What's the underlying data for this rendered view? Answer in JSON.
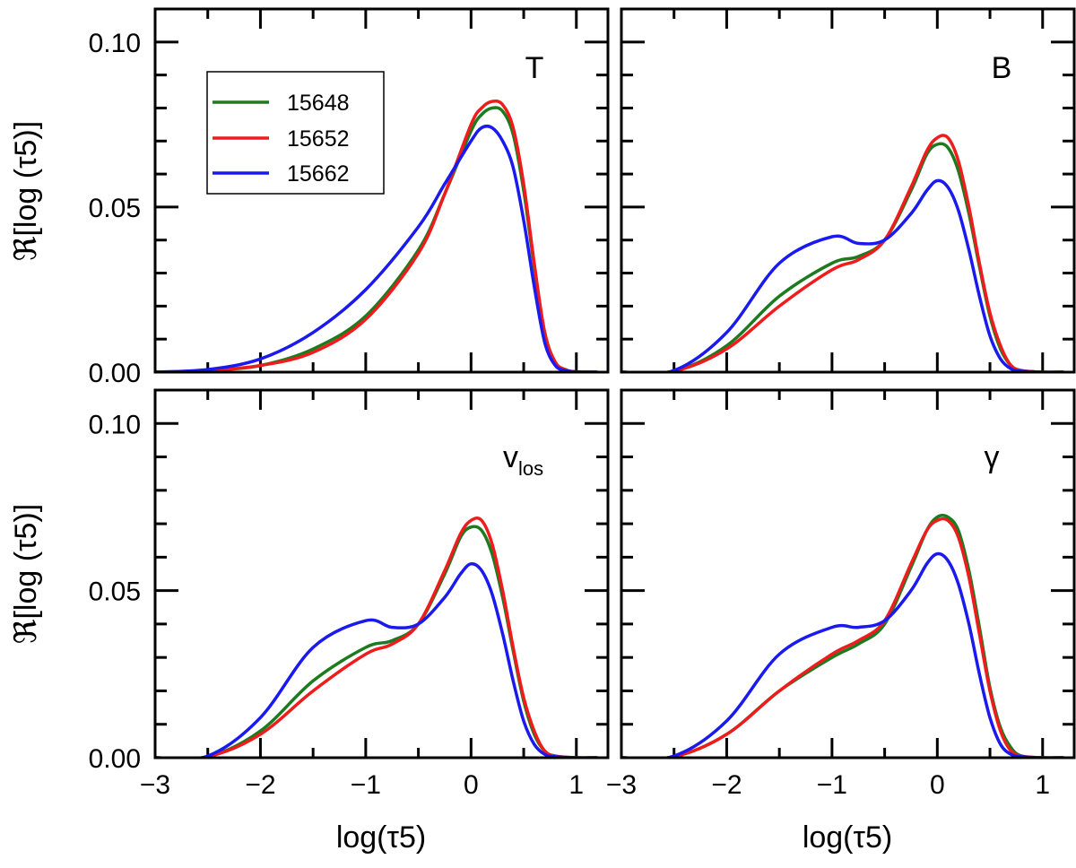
{
  "chart_data": [
    {
      "type": "line",
      "panel_label": "T",
      "xlabel": "log(τ5)",
      "ylabel": "ℜ[log (τ5)]",
      "xlim": [
        -3,
        1.3
      ],
      "ylim": [
        0,
        0.11
      ],
      "x_ticks": [
        "−3",
        "−2",
        "−1",
        "0",
        "1"
      ],
      "y_ticks": [
        "0.00",
        "0.05",
        "0.10"
      ],
      "x": [
        -3.0,
        -2.5,
        -2.0,
        -1.5,
        -1.0,
        -0.5,
        -0.25,
        0.0,
        0.1,
        0.2,
        0.3,
        0.4,
        0.5,
        0.6,
        0.7,
        0.8,
        0.9,
        1.0,
        1.2
      ],
      "series": [
        {
          "name": "15648",
          "color": "#1e7a1e",
          "values": [
            0.0,
            0.0005,
            0.002,
            0.007,
            0.017,
            0.037,
            0.054,
            0.073,
            0.078,
            0.08,
            0.079,
            0.072,
            0.055,
            0.032,
            0.012,
            0.003,
            0.0007,
            0.0001,
            0.0
          ]
        },
        {
          "name": "15652",
          "color": "#ee1c1c",
          "values": [
            0.0,
            0.0005,
            0.002,
            0.006,
            0.016,
            0.036,
            0.054,
            0.075,
            0.08,
            0.082,
            0.081,
            0.074,
            0.057,
            0.033,
            0.012,
            0.003,
            0.0007,
            0.0001,
            0.0
          ]
        },
        {
          "name": "15662",
          "color": "#1a1aee",
          "values": [
            0.0,
            0.0008,
            0.004,
            0.012,
            0.025,
            0.044,
            0.057,
            0.07,
            0.074,
            0.074,
            0.07,
            0.062,
            0.046,
            0.026,
            0.009,
            0.002,
            0.0005,
            0.0001,
            0.0
          ]
        }
      ],
      "legend": {
        "position": "top-left",
        "entries": [
          "15648",
          "15652",
          "15662"
        ]
      }
    },
    {
      "type": "line",
      "panel_label": "B",
      "xlabel": "log(τ5)",
      "ylabel": "",
      "xlim": [
        -3,
        1.3
      ],
      "ylim": [
        0,
        0.11
      ],
      "x_ticks": [
        "−3",
        "−2",
        "−1",
        "0",
        "1"
      ],
      "y_ticks": [],
      "x": [
        -3.0,
        -2.5,
        -2.0,
        -1.5,
        -1.0,
        -0.75,
        -0.5,
        -0.25,
        -0.1,
        0.0,
        0.1,
        0.2,
        0.3,
        0.4,
        0.5,
        0.6,
        0.7,
        0.8,
        1.0,
        1.2
      ],
      "series": [
        {
          "name": "15648",
          "color": "#1e7a1e",
          "values": [
            0.0,
            0.0003,
            0.008,
            0.023,
            0.033,
            0.035,
            0.04,
            0.055,
            0.066,
            0.069,
            0.068,
            0.061,
            0.048,
            0.032,
            0.017,
            0.007,
            0.002,
            0.0005,
            0.0,
            0.0
          ]
        },
        {
          "name": "15652",
          "color": "#ee1c1c",
          "values": [
            0.0,
            0.0003,
            0.007,
            0.02,
            0.031,
            0.034,
            0.04,
            0.056,
            0.067,
            0.071,
            0.071,
            0.064,
            0.05,
            0.033,
            0.018,
            0.008,
            0.002,
            0.0005,
            0.0,
            0.0
          ]
        },
        {
          "name": "15662",
          "color": "#1a1aee",
          "values": [
            0.0,
            0.0005,
            0.012,
            0.033,
            0.041,
            0.039,
            0.04,
            0.048,
            0.055,
            0.058,
            0.056,
            0.049,
            0.037,
            0.023,
            0.011,
            0.004,
            0.001,
            0.0003,
            0.0,
            0.0
          ]
        }
      ]
    },
    {
      "type": "line",
      "panel_label": "vlos",
      "xlabel": "log(τ5)",
      "ylabel": "ℜ[log (τ5)]",
      "xlim": [
        -3,
        1.3
      ],
      "ylim": [
        0,
        0.11
      ],
      "x_ticks": [
        "−3",
        "−2",
        "−1",
        "0",
        "1"
      ],
      "y_ticks": [
        "0.00",
        "0.05",
        "0.10"
      ],
      "x": [
        -3.0,
        -2.5,
        -2.0,
        -1.5,
        -1.0,
        -0.75,
        -0.5,
        -0.25,
        -0.1,
        0.0,
        0.1,
        0.2,
        0.3,
        0.4,
        0.5,
        0.6,
        0.7,
        0.8,
        1.0,
        1.2
      ],
      "series": [
        {
          "name": "15648",
          "color": "#1e7a1e",
          "values": [
            0.0,
            0.0003,
            0.008,
            0.023,
            0.033,
            0.035,
            0.04,
            0.055,
            0.066,
            0.069,
            0.068,
            0.061,
            0.048,
            0.032,
            0.017,
            0.007,
            0.002,
            0.0005,
            0.0,
            0.0
          ]
        },
        {
          "name": "15652",
          "color": "#ee1c1c",
          "values": [
            0.0,
            0.0003,
            0.007,
            0.02,
            0.031,
            0.034,
            0.04,
            0.056,
            0.067,
            0.071,
            0.071,
            0.064,
            0.05,
            0.033,
            0.018,
            0.008,
            0.002,
            0.0005,
            0.0,
            0.0
          ]
        },
        {
          "name": "15662",
          "color": "#1a1aee",
          "values": [
            0.0,
            0.0005,
            0.012,
            0.033,
            0.041,
            0.039,
            0.04,
            0.048,
            0.055,
            0.058,
            0.056,
            0.049,
            0.037,
            0.023,
            0.011,
            0.004,
            0.001,
            0.0003,
            0.0,
            0.0
          ]
        }
      ]
    },
    {
      "type": "line",
      "panel_label": "γ",
      "xlabel": "log(τ5)",
      "ylabel": "",
      "xlim": [
        -3,
        1.3
      ],
      "ylim": [
        0,
        0.11
      ],
      "x_ticks": [
        "−3",
        "−2",
        "−1",
        "0",
        "1"
      ],
      "y_ticks": [],
      "x": [
        -3.0,
        -2.5,
        -2.0,
        -1.5,
        -1.0,
        -0.75,
        -0.5,
        -0.25,
        -0.1,
        0.0,
        0.1,
        0.2,
        0.3,
        0.4,
        0.5,
        0.6,
        0.7,
        0.8,
        1.0,
        1.2
      ],
      "series": [
        {
          "name": "15648",
          "color": "#1e7a1e",
          "values": [
            0.0,
            0.0003,
            0.007,
            0.02,
            0.03,
            0.034,
            0.04,
            0.057,
            0.068,
            0.072,
            0.072,
            0.068,
            0.056,
            0.039,
            0.021,
            0.009,
            0.003,
            0.0005,
            0.0,
            0.0
          ]
        },
        {
          "name": "15652",
          "color": "#ee1c1c",
          "values": [
            0.0,
            0.0003,
            0.007,
            0.02,
            0.031,
            0.035,
            0.041,
            0.058,
            0.068,
            0.071,
            0.071,
            0.066,
            0.054,
            0.037,
            0.02,
            0.008,
            0.002,
            0.0005,
            0.0,
            0.0
          ]
        },
        {
          "name": "15662",
          "color": "#1a1aee",
          "values": [
            0.0,
            0.0005,
            0.011,
            0.031,
            0.039,
            0.039,
            0.041,
            0.05,
            0.058,
            0.061,
            0.059,
            0.052,
            0.04,
            0.025,
            0.012,
            0.004,
            0.001,
            0.0003,
            0.0,
            0.0
          ]
        }
      ]
    }
  ]
}
